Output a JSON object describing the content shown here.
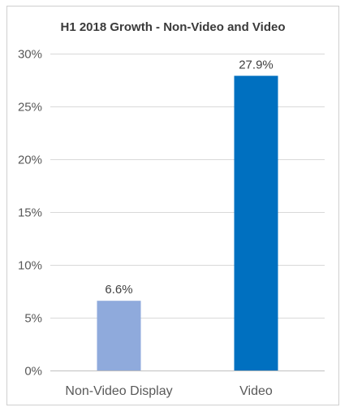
{
  "chart_data": {
    "type": "bar",
    "title": "H1 2018 Growth - Non-Video and Video",
    "categories": [
      "Non-Video Display",
      "Video"
    ],
    "values": [
      6.6,
      27.9
    ],
    "data_labels": [
      "6.6%",
      "27.9%"
    ],
    "colors": [
      "#8faadc",
      "#0070c0"
    ],
    "ylim": [
      0,
      30
    ],
    "yticks": [
      0,
      5,
      10,
      15,
      20,
      25,
      30
    ],
    "ytick_labels": [
      "0%",
      "5%",
      "10%",
      "15%",
      "20%",
      "25%",
      "30%"
    ],
    "grid": true,
    "legend": "none",
    "xlabel": "",
    "ylabel": ""
  }
}
